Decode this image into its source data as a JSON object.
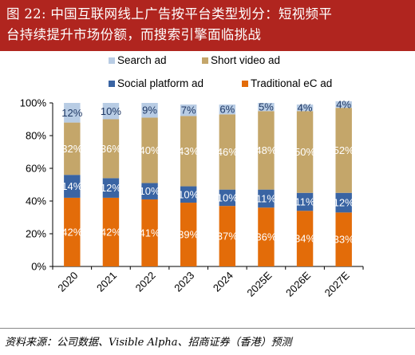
{
  "header": {
    "line1": "图 22: 中国互联网线上广告按平台类型划分：短视频平",
    "line2": "台持续提升市场份额，而搜索引擎面临挑战"
  },
  "source": "资料来源：公司数据、Visible Alpha、招商证券（香港）预测",
  "chart_data": {
    "type": "bar",
    "stacked": true,
    "categories": [
      "2020",
      "2021",
      "2022",
      "2023",
      "2024",
      "2025E",
      "2026E",
      "2027E"
    ],
    "ylim": [
      0,
      100
    ],
    "yticks": [
      "0%",
      "20%",
      "40%",
      "60%",
      "80%",
      "100%"
    ],
    "series": [
      {
        "name": "Traditional eC ad",
        "color": "#e36c09",
        "label_color": "#ffffff",
        "values": [
          42,
          42,
          41,
          39,
          37,
          36,
          34,
          33
        ]
      },
      {
        "name": "Social platform ad",
        "color": "#3a64a3",
        "label_color": "#ffffff",
        "values": [
          14,
          12,
          10,
          10,
          10,
          11,
          11,
          12
        ]
      },
      {
        "name": "Short video ad",
        "color": "#c4a66a",
        "label_color": "#ffffff",
        "values": [
          32,
          36,
          40,
          43,
          46,
          48,
          50,
          52
        ]
      },
      {
        "name": "Search ad",
        "color": "#b8cce4",
        "label_color": "#1f3864",
        "values": [
          12,
          10,
          9,
          7,
          6,
          5,
          4,
          4
        ]
      }
    ],
    "legend_order": [
      "Search ad",
      "Short video ad",
      "Social platform ad",
      "Traditional eC ad"
    ],
    "legend_position": "top",
    "grid": false
  }
}
